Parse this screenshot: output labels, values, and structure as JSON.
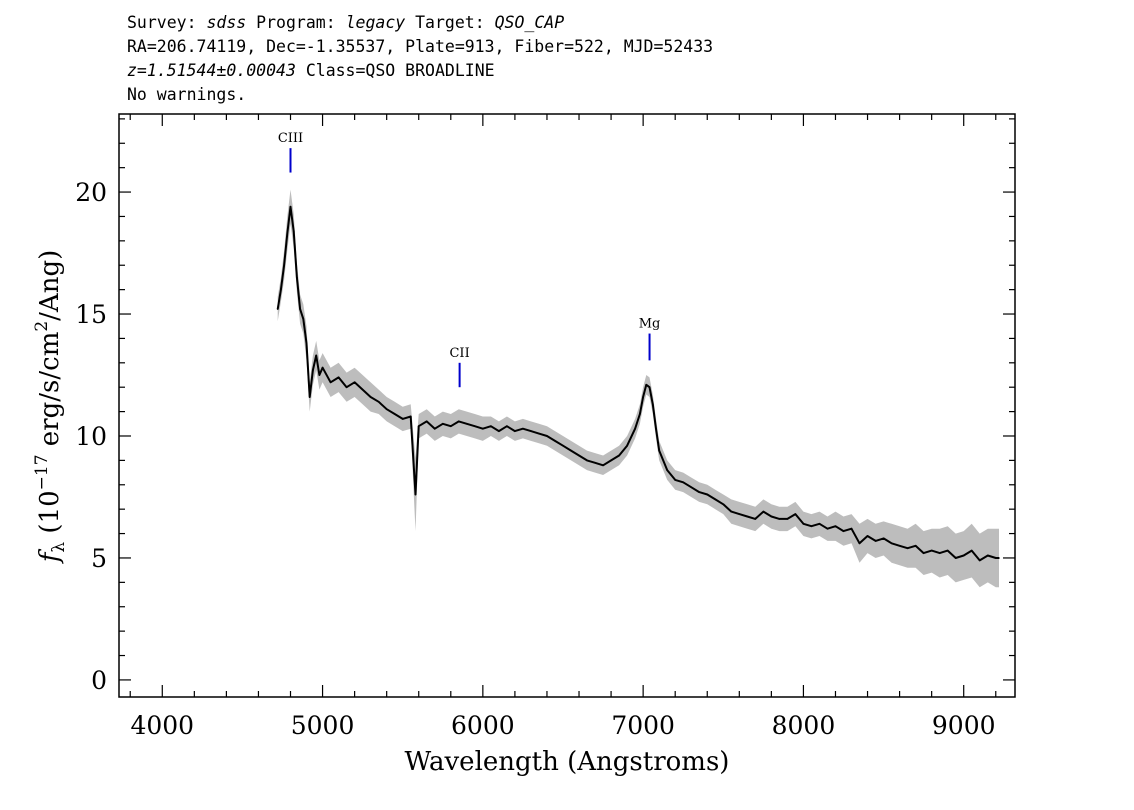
{
  "header": {
    "line1": {
      "survey_label": "Survey: ",
      "survey": "sdss",
      "program_label": " Program: ",
      "program": "legacy",
      "target_label": " Target: ",
      "target": "QSO_CAP"
    },
    "line2": "RA=206.74119, Dec=-1.35537, Plate=913, Fiber=522, MJD=52433",
    "line3": {
      "redshift": "z=1.51544±0.00043",
      "class": " Class=QSO BROADLINE"
    },
    "line4": "No warnings."
  },
  "colors": {
    "spectrum": "#000000",
    "error_band": "#bdbdbd",
    "line_marker": "#0000cc",
    "axes": "#000000"
  },
  "chart_data": {
    "type": "line",
    "title": "",
    "xlabel": "Wavelength (Angstroms)",
    "ylabel_parts": {
      "f": "f",
      "sub": "λ",
      "pre": " (10",
      "exp": "−17",
      "mid": " erg/s/cm",
      "exp2": "2",
      "post": "/Ang)"
    },
    "xlim": [
      3730,
      9320
    ],
    "ylim": [
      -0.7,
      23.2
    ],
    "x_ticks": [
      4000,
      5000,
      6000,
      7000,
      8000,
      9000
    ],
    "y_ticks": [
      0,
      5,
      10,
      15,
      20
    ],
    "grid": false,
    "series": [
      {
        "x": [
          4720,
          4740,
          4760,
          4780,
          4800,
          4820,
          4840,
          4860,
          4880,
          4900,
          4920,
          4940,
          4960,
          4980,
          5000,
          5050,
          5100,
          5150,
          5200,
          5250,
          5300,
          5350,
          5400,
          5450,
          5500,
          5550,
          5580,
          5600,
          5650,
          5700,
          5750,
          5800,
          5850,
          5900,
          5950,
          6000,
          6050,
          6100,
          6150,
          6200,
          6250,
          6300,
          6350,
          6400,
          6450,
          6500,
          6550,
          6600,
          6650,
          6700,
          6750,
          6800,
          6850,
          6900,
          6950,
          6980,
          7000,
          7020,
          7040,
          7060,
          7080,
          7100,
          7150,
          7200,
          7250,
          7300,
          7350,
          7400,
          7450,
          7500,
          7550,
          7600,
          7650,
          7700,
          7750,
          7800,
          7850,
          7900,
          7950,
          8000,
          8050,
          8100,
          8150,
          8200,
          8250,
          8300,
          8350,
          8400,
          8450,
          8500,
          8550,
          8600,
          8650,
          8700,
          8750,
          8800,
          8850,
          8900,
          8950,
          9000,
          9050,
          9100,
          9150,
          9200,
          9220
        ],
        "y": [
          15.2,
          16.0,
          17.0,
          18.3,
          19.4,
          18.4,
          16.5,
          15.2,
          14.8,
          13.8,
          11.6,
          12.7,
          13.3,
          12.5,
          12.8,
          12.2,
          12.4,
          12.0,
          12.2,
          11.9,
          11.6,
          11.4,
          11.1,
          10.9,
          10.7,
          10.8,
          7.6,
          10.4,
          10.6,
          10.3,
          10.5,
          10.4,
          10.6,
          10.5,
          10.4,
          10.3,
          10.4,
          10.2,
          10.4,
          10.2,
          10.3,
          10.2,
          10.1,
          10.0,
          9.8,
          9.6,
          9.4,
          9.2,
          9.0,
          8.9,
          8.8,
          9.0,
          9.2,
          9.6,
          10.3,
          10.9,
          11.6,
          12.1,
          12.0,
          11.3,
          10.3,
          9.4,
          8.6,
          8.2,
          8.1,
          7.9,
          7.7,
          7.6,
          7.4,
          7.2,
          6.9,
          6.8,
          6.7,
          6.6,
          6.9,
          6.7,
          6.6,
          6.6,
          6.8,
          6.4,
          6.3,
          6.4,
          6.2,
          6.3,
          6.1,
          6.2,
          5.6,
          5.9,
          5.7,
          5.8,
          5.6,
          5.5,
          5.4,
          5.5,
          5.2,
          5.3,
          5.2,
          5.3,
          5.0,
          5.1,
          5.3,
          4.9,
          5.1,
          5.0,
          5.0
        ],
        "err": [
          0.5,
          0.5,
          0.6,
          0.7,
          0.7,
          0.7,
          0.6,
          0.6,
          0.6,
          0.7,
          0.6,
          0.6,
          0.6,
          0.6,
          0.6,
          0.6,
          0.6,
          0.6,
          0.6,
          0.6,
          0.6,
          0.5,
          0.5,
          0.5,
          0.5,
          0.5,
          1.5,
          0.5,
          0.5,
          0.5,
          0.5,
          0.5,
          0.5,
          0.5,
          0.5,
          0.5,
          0.4,
          0.4,
          0.4,
          0.4,
          0.4,
          0.4,
          0.4,
          0.4,
          0.4,
          0.4,
          0.4,
          0.4,
          0.4,
          0.4,
          0.4,
          0.4,
          0.4,
          0.4,
          0.4,
          0.4,
          0.4,
          0.4,
          0.4,
          0.4,
          0.4,
          0.4,
          0.4,
          0.4,
          0.4,
          0.4,
          0.4,
          0.4,
          0.4,
          0.4,
          0.5,
          0.5,
          0.5,
          0.5,
          0.5,
          0.5,
          0.5,
          0.5,
          0.5,
          0.5,
          0.5,
          0.5,
          0.5,
          0.6,
          0.6,
          0.6,
          0.8,
          0.7,
          0.7,
          0.7,
          0.8,
          0.8,
          0.8,
          0.9,
          0.9,
          0.9,
          1.0,
          1.0,
          1.0,
          1.0,
          1.1,
          1.1,
          1.1,
          1.2,
          1.2
        ]
      }
    ],
    "annotations": [
      {
        "label": "CIII",
        "x": 4800,
        "y_bottom": 20.8,
        "y_top": 21.8
      },
      {
        "label": "CII",
        "x": 5855,
        "y_bottom": 12.0,
        "y_top": 13.0
      },
      {
        "label": "Mg",
        "x": 7040,
        "y_bottom": 13.1,
        "y_top": 14.2
      }
    ]
  }
}
